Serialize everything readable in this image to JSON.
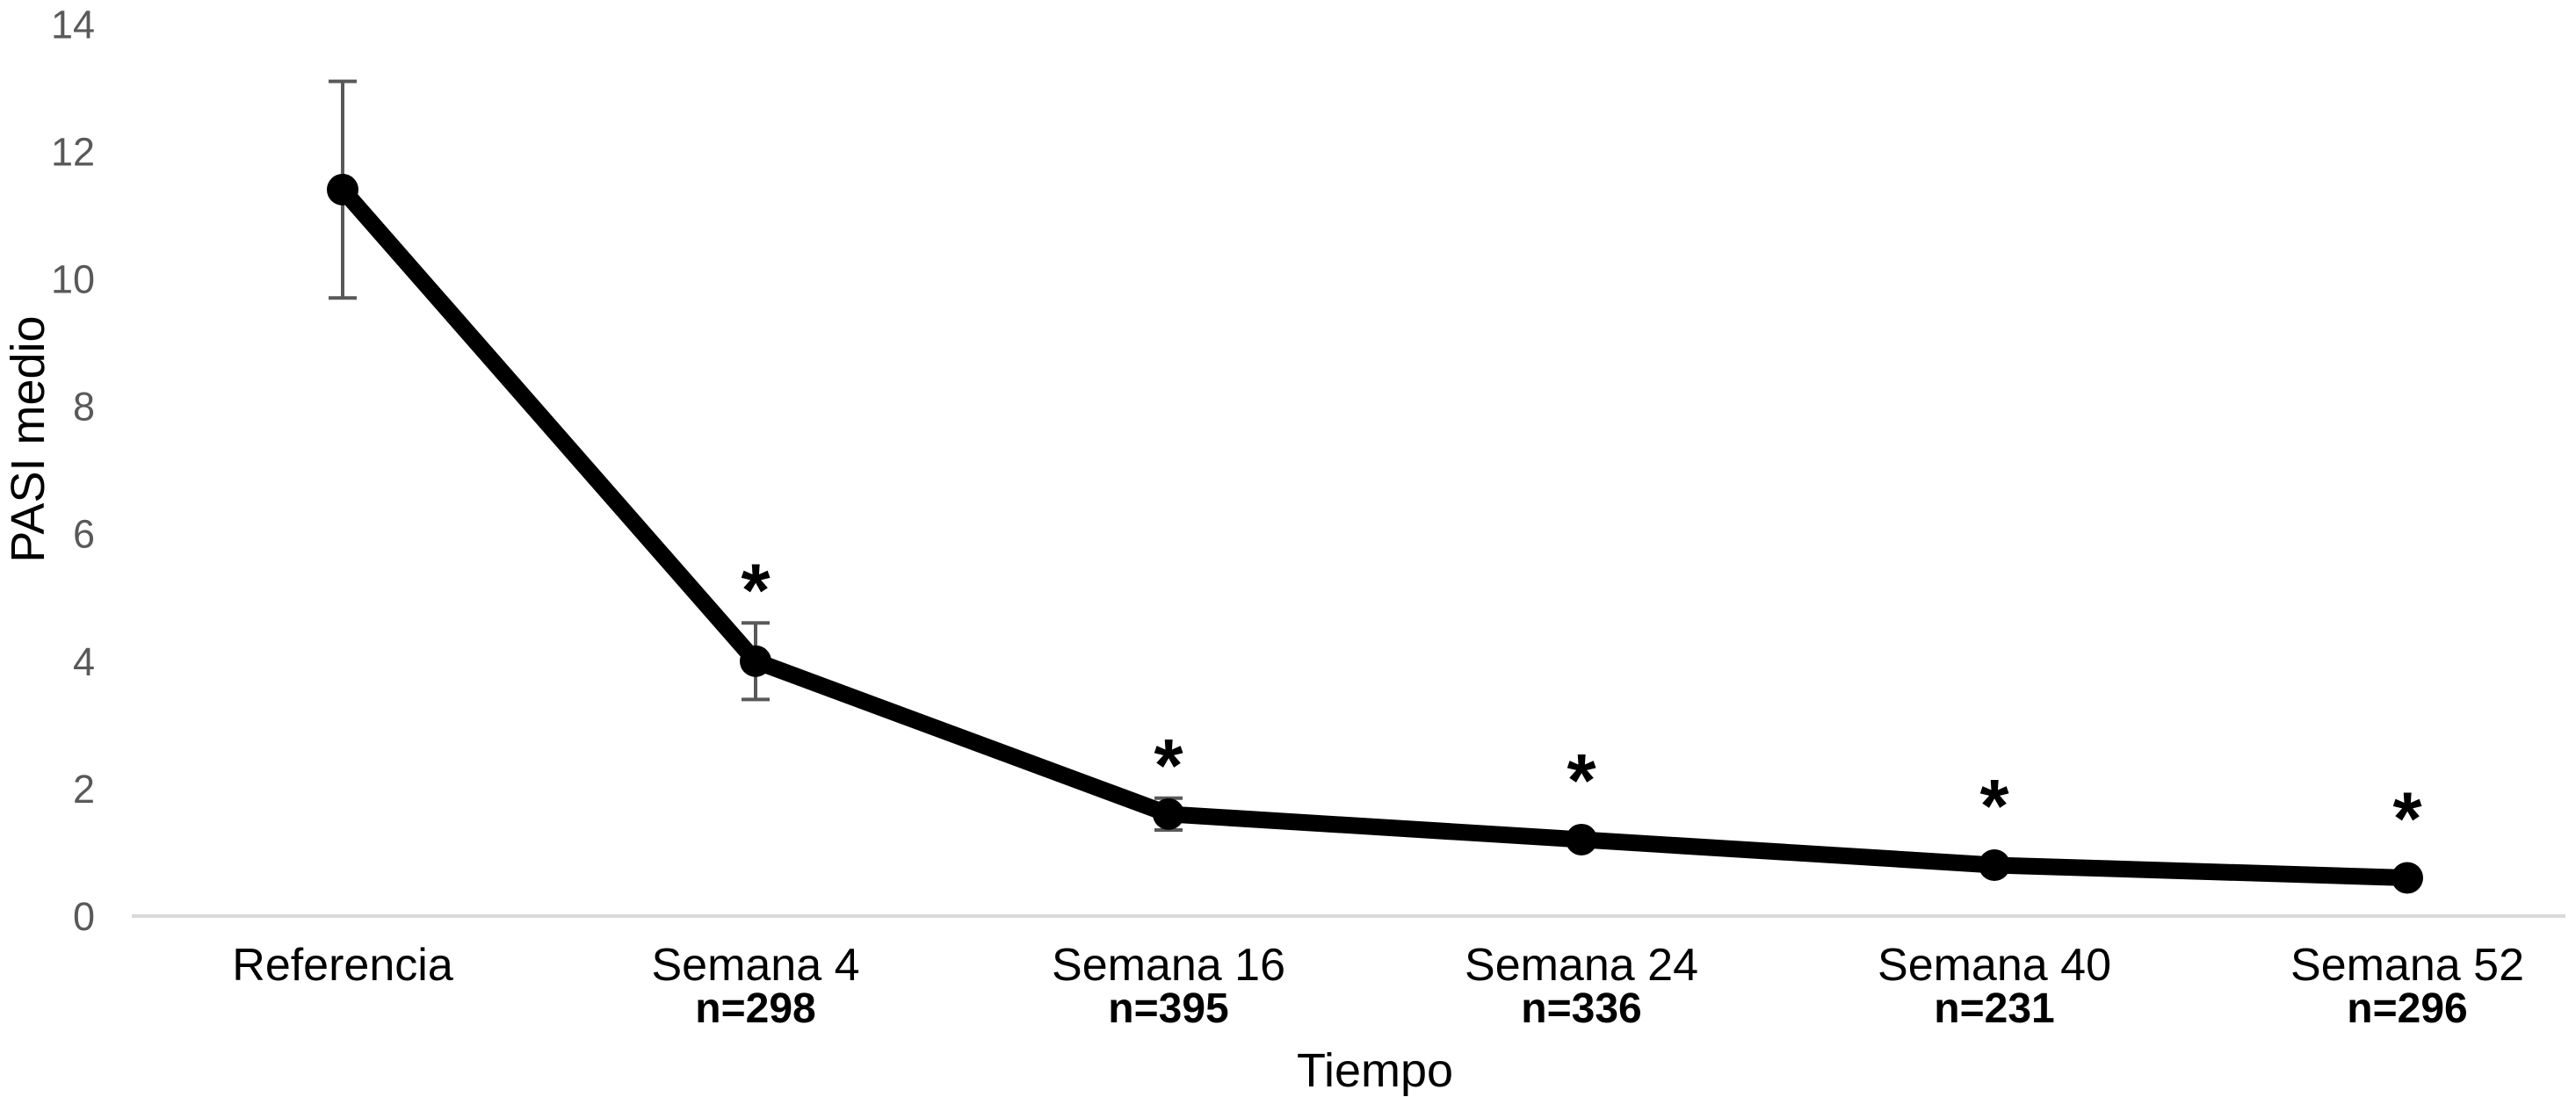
{
  "chart_data": {
    "type": "line",
    "title": "",
    "xlabel": "Tiempo",
    "ylabel": "PASI medio",
    "ylim": [
      0,
      14
    ],
    "yticks": [
      0,
      2,
      4,
      6,
      8,
      10,
      12,
      14
    ],
    "grid": "off",
    "legend": "none",
    "categories": [
      "Referencia",
      "Semana 4",
      "Semana 16",
      "Semana 24",
      "Semana 40",
      "Semana 52"
    ],
    "n_labels": [
      "",
      "n=298",
      "n=395",
      "n=336",
      "n=231",
      "n=296"
    ],
    "series": [
      {
        "name": "PASI medio",
        "values": [
          11.4,
          4.0,
          1.6,
          1.2,
          0.8,
          0.6
        ],
        "error": [
          1.7,
          0.6,
          0.25,
          null,
          null,
          null
        ],
        "significant": [
          false,
          true,
          true,
          true,
          true,
          true
        ]
      }
    ],
    "significance_marker": "*",
    "colors": {
      "line": "#000000",
      "marker": "#000000",
      "error_bar": "#595959",
      "axis_line": "#d9d9d9",
      "tick_label": "#595959",
      "category_label": "#000000",
      "axis_title": "#000000",
      "background": "#ffffff"
    }
  }
}
